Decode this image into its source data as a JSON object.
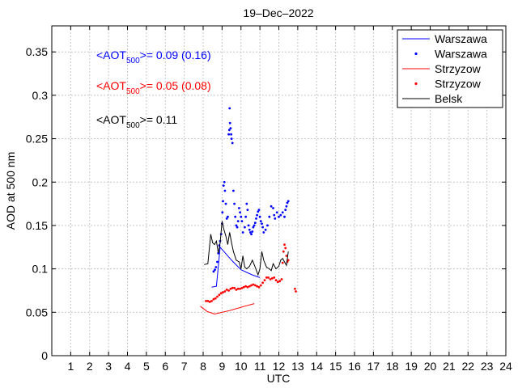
{
  "chart_data": {
    "type": "line",
    "title": "19–Dec–2022",
    "xlabel": "UTC",
    "ylabel": "AOD at 500 nm",
    "xlim": [
      0,
      24
    ],
    "ylim": [
      0,
      0.38
    ],
    "xticks": [
      1,
      2,
      3,
      4,
      5,
      6,
      7,
      8,
      9,
      10,
      11,
      12,
      13,
      14,
      15,
      16,
      17,
      18,
      19,
      20,
      21,
      22,
      23,
      24
    ],
    "yticks": [
      0,
      0.05,
      0.1,
      0.15,
      0.2,
      0.25,
      0.3,
      0.35
    ],
    "ytick_labels": [
      "0",
      "0.05",
      "0.1",
      "0.15",
      "0.2",
      "0.25",
      "0.3",
      "0.35"
    ],
    "grid": true,
    "legend_position": "top-right",
    "legend": [
      {
        "label": "Warszawa",
        "style": "line",
        "color": "#0000ff"
      },
      {
        "label": "Warszawa",
        "style": "dots",
        "color": "#0000ff"
      },
      {
        "label": "Strzyzow",
        "style": "line",
        "color": "#ff0000"
      },
      {
        "label": "Strzyzow",
        "style": "dots",
        "color": "#ff0000"
      },
      {
        "label": "Belsk",
        "style": "line",
        "color": "#000000"
      }
    ],
    "annotations": [
      {
        "prefix": "<AOT",
        "sub": "500",
        "suffix": ">= 0.09 (0.16)",
        "color": "#0000ff"
      },
      {
        "prefix": "<AOT",
        "sub": "500",
        "suffix": ">= 0.05 (0.08)",
        "color": "#ff0000"
      },
      {
        "prefix": "<AOT",
        "sub": "500",
        "suffix": ">= 0.11",
        "color": "#000000"
      }
    ],
    "series": [
      {
        "name": "Warszawa",
        "style": "line",
        "color": "#0000ff",
        "x": [
          8.45,
          8.7,
          8.9,
          9.1,
          9.5,
          10.0,
          10.6,
          11.0
        ],
        "y": [
          0.079,
          0.08,
          0.125,
          0.12,
          0.11,
          0.099,
          0.093,
          0.09
        ]
      },
      {
        "name": "Warszawa",
        "style": "dots",
        "color": "#0000ff",
        "x": [
          8.55,
          8.62,
          8.68,
          8.75,
          8.8,
          8.85,
          8.9,
          8.95,
          9.0,
          9.02,
          9.05,
          9.08,
          9.12,
          9.15,
          9.2,
          9.25,
          9.3,
          9.35,
          9.38,
          9.4,
          9.42,
          9.45,
          9.48,
          9.5,
          9.55,
          9.6,
          9.65,
          9.7,
          9.75,
          9.8,
          9.85,
          9.9,
          9.95,
          10.0,
          10.05,
          10.1,
          10.2,
          10.25,
          10.3,
          10.35,
          10.4,
          10.45,
          10.5,
          10.55,
          10.6,
          10.65,
          10.7,
          10.75,
          10.8,
          10.85,
          10.9,
          10.95,
          11.0,
          11.05,
          11.1,
          11.15,
          11.2,
          11.3,
          11.4,
          11.5,
          11.6,
          11.7,
          11.75,
          11.8,
          11.9,
          12.0,
          12.1,
          12.2,
          12.3,
          12.35,
          12.4,
          12.45,
          12.5
        ],
        "y": [
          0.097,
          0.099,
          0.102,
          0.108,
          0.118,
          0.127,
          0.132,
          0.14,
          0.152,
          0.165,
          0.178,
          0.196,
          0.2,
          0.19,
          0.175,
          0.158,
          0.16,
          0.255,
          0.26,
          0.285,
          0.268,
          0.262,
          0.255,
          0.25,
          0.245,
          0.19,
          0.175,
          0.16,
          0.15,
          0.148,
          0.155,
          0.17,
          0.165,
          0.16,
          0.155,
          0.142,
          0.148,
          0.16,
          0.175,
          0.168,
          0.15,
          0.145,
          0.142,
          0.14,
          0.143,
          0.148,
          0.15,
          0.153,
          0.158,
          0.162,
          0.166,
          0.168,
          0.16,
          0.155,
          0.152,
          0.148,
          0.142,
          0.145,
          0.15,
          0.16,
          0.172,
          0.17,
          0.162,
          0.158,
          0.165,
          0.16,
          0.162,
          0.165,
          0.16,
          0.168,
          0.172,
          0.176,
          0.178
        ]
      },
      {
        "name": "Strzyzow",
        "style": "line",
        "color": "#ff0000",
        "x": [
          7.85,
          8.2,
          8.6,
          9.4,
          10.2,
          10.7
        ],
        "y": [
          0.057,
          0.051,
          0.048,
          0.052,
          0.057,
          0.06
        ]
      },
      {
        "name": "Strzyzow",
        "style": "dots",
        "color": "#ff0000",
        "x": [
          8.15,
          8.25,
          8.35,
          8.45,
          8.55,
          8.65,
          8.75,
          8.85,
          8.95,
          9.05,
          9.15,
          9.25,
          9.35,
          9.45,
          9.55,
          9.65,
          9.75,
          9.85,
          9.95,
          10.05,
          10.15,
          10.25,
          10.35,
          10.45,
          10.55,
          10.65,
          10.75,
          10.85,
          10.95,
          11.05,
          11.15,
          11.25,
          11.35,
          11.45,
          11.55,
          11.65,
          11.75,
          11.85,
          11.95,
          12.05,
          12.15,
          12.2,
          12.25,
          12.3,
          12.35,
          12.4,
          12.45,
          12.5,
          12.85,
          12.9
        ],
        "y": [
          0.063,
          0.063,
          0.062,
          0.063,
          0.065,
          0.066,
          0.068,
          0.07,
          0.072,
          0.073,
          0.074,
          0.076,
          0.075,
          0.077,
          0.078,
          0.078,
          0.076,
          0.077,
          0.077,
          0.078,
          0.079,
          0.08,
          0.079,
          0.08,
          0.081,
          0.082,
          0.081,
          0.08,
          0.079,
          0.081,
          0.084,
          0.087,
          0.09,
          0.09,
          0.088,
          0.089,
          0.09,
          0.087,
          0.085,
          0.086,
          0.088,
          0.107,
          0.12,
          0.128,
          0.124,
          0.115,
          0.108,
          0.11,
          0.077,
          0.074
        ]
      },
      {
        "name": "Belsk",
        "style": "line",
        "color": "#000000",
        "x": [
          8.05,
          8.25,
          8.4,
          8.5,
          8.6,
          8.7,
          8.8,
          8.9,
          9.0,
          9.1,
          9.2,
          9.3,
          9.4,
          9.5,
          9.6,
          9.75,
          9.9,
          10.0,
          10.1,
          10.2,
          10.3,
          10.45,
          10.6,
          10.75,
          10.9,
          11.0,
          11.1,
          11.2,
          11.35,
          11.5,
          11.6,
          11.7,
          11.85,
          12.0,
          12.1,
          12.2,
          12.3,
          12.4,
          12.5
        ],
        "y": [
          0.105,
          0.106,
          0.14,
          0.13,
          0.128,
          0.132,
          0.118,
          0.13,
          0.155,
          0.145,
          0.138,
          0.128,
          0.142,
          0.13,
          0.12,
          0.11,
          0.108,
          0.1,
          0.115,
          0.102,
          0.1,
          0.103,
          0.11,
          0.102,
          0.093,
          0.1,
          0.12,
          0.11,
          0.102,
          0.1,
          0.098,
          0.106,
          0.1,
          0.103,
          0.11,
          0.112,
          0.108,
          0.104,
          0.12
        ]
      }
    ]
  }
}
